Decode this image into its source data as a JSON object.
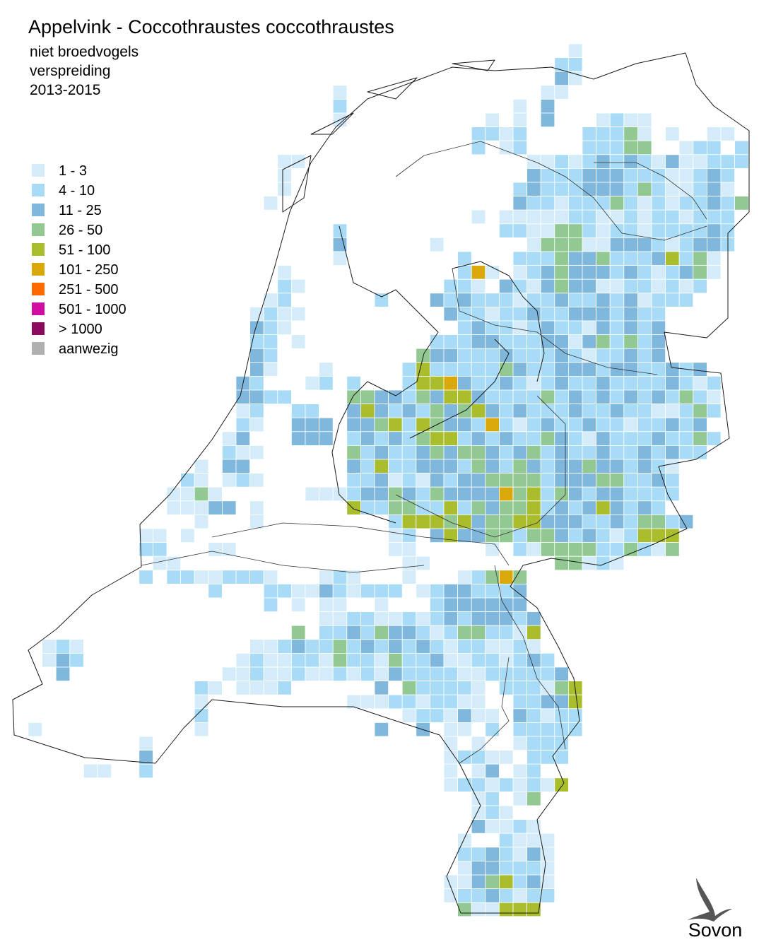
{
  "header": {
    "title": "Appelvink - Coccothraustes coccothraustes",
    "lines": [
      "niet broedvogels",
      "verspreiding",
      "2013-2015"
    ]
  },
  "legend": [
    {
      "label": "1 - 3",
      "color": "#d4ecfa"
    },
    {
      "label": "4 - 10",
      "color": "#a8dcf6"
    },
    {
      "label": "11 - 25",
      "color": "#7fb8dc"
    },
    {
      "label": "26 - 50",
      "color": "#92c892"
    },
    {
      "label": "51 - 100",
      "color": "#aabd2c"
    },
    {
      "label": "101 - 250",
      "color": "#d9a90c"
    },
    {
      "label": "251 - 500",
      "color": "#ff6a00"
    },
    {
      "label": "501 - 1000",
      "color": "#d00ea2"
    },
    {
      "label": "> 1000",
      "color": "#8c0b5e"
    },
    {
      "label": "aanwezig",
      "color": "#b0b0b0"
    }
  ],
  "grid": {
    "rows": [
      ".......................................1",
      "......................................22",
      "......................................31",
      "......................1..............11",
      "......................2............1.3",
      "......................1..........1.1.3...1211",
      "................................2212....22241.1..11",
      "................................2.12....22244..122.2",
      "..................11................1121232321311222",
      "..................1.................322233322211232",
      "..................1................2322233324211231",
      ".................1.................32212224212122324",
      "................................1.11111221121221222",
      "......................2...........22114421221222232",
      "......................3......1......144411333212332",
      "......................1........2...222433422235241",
      "..................1............261.123433323212341",
      "..................21..........221.321343311221212",
      ".................12......2...3232221223223231222",
      "................1211..........3221223223332322",
      "................321............232212322132323",
      "................22.1.........22233222331342423",
      "................32..........433222322232122323",
      "................31...1.....2522222432233323322323",
      "...............32...12.2...25563223212322322223212",
      "...............3322....443324355322224232323232421",
      "...............12..22..353232434532322232232211242",
      "...............21..333.33452543326212322322122323",
      "..............13...333.232324552323224321322232242",
      "..............211......42322343443234232232232322",
      "............1.33.......325223332432432334332321",
      "...........21.121......223121323344442333442232",
      "..........1141......111233432433336452432332222",
      "..........11133.1......52244225243445232353232",
      "............1...1.........2555453445533322324423",
      "........11.1..............12.353344244323212555",
      "........22...11...........11.....1.214444224214",
      ".........11................11.........44121",
      "........2.22112221...121...1...12464",
      ".............2...2211321222.12332223",
      ".................2.1.11..1...2333333",
      ".....................1122112123233323",
      "...................4.2232433212442215",
      ".121............112322423232321221121",
      ".132...........12112214221422311221232",
      "..3...........1121121121213222211222223",
      "............21.1112......3.422221.222145",
      "............1..........1112212211..22335",
      "............2..............1221311.32122",
      "1...........1............3..3.11.2.22222",
      "........1.....................1.1..1222",
      "........3.....................12211.222",
      "....11..2.....................1.13.12",
      "..............................122121215",
      "................................12.14",
      "................................121",
      "................................31121",
      "...............................1..2111",
      "...............................2232131",
      "...............................1332221",
      "..............................11345231",
      "..............................12232122",
      "...............................411555"
    ]
  },
  "logo": "Sovon"
}
